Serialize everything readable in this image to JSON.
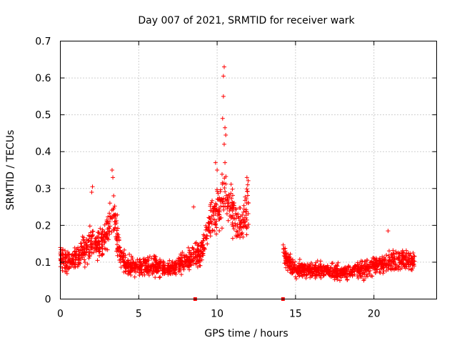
{
  "chart_data": {
    "type": "scatter",
    "title": "Day 007 of 2021, SRMTID for receiver wark",
    "xlabel": "GPS time / hours",
    "ylabel": "SRMTID / TECUs",
    "xlim": [
      0,
      24
    ],
    "ylim": [
      0,
      0.7
    ],
    "xticks": [
      0,
      5,
      10,
      15,
      20
    ],
    "xtick_labels": [
      "0",
      "5",
      "10",
      "15",
      "20"
    ],
    "yticks": [
      0,
      0.1,
      0.2,
      0.3,
      0.4,
      0.5,
      0.6,
      0.7
    ],
    "ytick_labels": [
      "0",
      "0.1",
      "0.2",
      "0.3",
      "0.4",
      "0.5",
      "0.6",
      "0.7"
    ],
    "grid": true,
    "marker": "+",
    "color": "#ff0000",
    "series": [
      {
        "name": "SRMTID",
        "segments": [
          {
            "x_start": 0.0,
            "x_end": 12.0,
            "profile": [
              {
                "x": 0.0,
                "y": 0.11
              },
              {
                "x": 0.5,
                "y": 0.1
              },
              {
                "x": 1.0,
                "y": 0.11
              },
              {
                "x": 1.5,
                "y": 0.13
              },
              {
                "x": 2.0,
                "y": 0.16
              },
              {
                "x": 2.5,
                "y": 0.14
              },
              {
                "x": 3.0,
                "y": 0.19
              },
              {
                "x": 3.4,
                "y": 0.24
              },
              {
                "x": 3.8,
                "y": 0.13
              },
              {
                "x": 4.2,
                "y": 0.09
              },
              {
                "x": 5.0,
                "y": 0.09
              },
              {
                "x": 6.0,
                "y": 0.09
              },
              {
                "x": 7.0,
                "y": 0.08
              },
              {
                "x": 8.0,
                "y": 0.1
              },
              {
                "x": 9.0,
                "y": 0.13
              },
              {
                "x": 9.5,
                "y": 0.2
              },
              {
                "x": 10.0,
                "y": 0.24
              },
              {
                "x": 10.5,
                "y": 0.3
              },
              {
                "x": 11.0,
                "y": 0.23
              },
              {
                "x": 11.5,
                "y": 0.19
              },
              {
                "x": 12.0,
                "y": 0.25
              }
            ]
          },
          {
            "x_start": 14.2,
            "x_end": 22.6,
            "profile": [
              {
                "x": 14.2,
                "y": 0.12
              },
              {
                "x": 15.0,
                "y": 0.08
              },
              {
                "x": 16.0,
                "y": 0.08
              },
              {
                "x": 17.0,
                "y": 0.08
              },
              {
                "x": 18.0,
                "y": 0.07
              },
              {
                "x": 19.0,
                "y": 0.08
              },
              {
                "x": 20.0,
                "y": 0.09
              },
              {
                "x": 21.0,
                "y": 0.1
              },
              {
                "x": 22.0,
                "y": 0.11
              },
              {
                "x": 22.6,
                "y": 0.1
              }
            ]
          }
        ],
        "outliers": [
          {
            "x": 10.45,
            "y": 0.63
          },
          {
            "x": 10.4,
            "y": 0.605
          },
          {
            "x": 10.4,
            "y": 0.55
          },
          {
            "x": 10.35,
            "y": 0.49
          },
          {
            "x": 10.5,
            "y": 0.465
          },
          {
            "x": 10.55,
            "y": 0.445
          },
          {
            "x": 10.45,
            "y": 0.42
          },
          {
            "x": 10.5,
            "y": 0.37
          },
          {
            "x": 9.9,
            "y": 0.37
          },
          {
            "x": 10.0,
            "y": 0.35
          },
          {
            "x": 3.3,
            "y": 0.35
          },
          {
            "x": 3.35,
            "y": 0.33
          },
          {
            "x": 2.05,
            "y": 0.305
          },
          {
            "x": 2.0,
            "y": 0.29
          },
          {
            "x": 11.9,
            "y": 0.33
          },
          {
            "x": 11.95,
            "y": 0.31
          },
          {
            "x": 20.9,
            "y": 0.185
          },
          {
            "x": 8.5,
            "y": 0.25
          }
        ],
        "zero_points": [
          {
            "x": 8.6,
            "y": 0.0
          },
          {
            "x": 14.2,
            "y": 0.0
          }
        ]
      }
    ]
  }
}
